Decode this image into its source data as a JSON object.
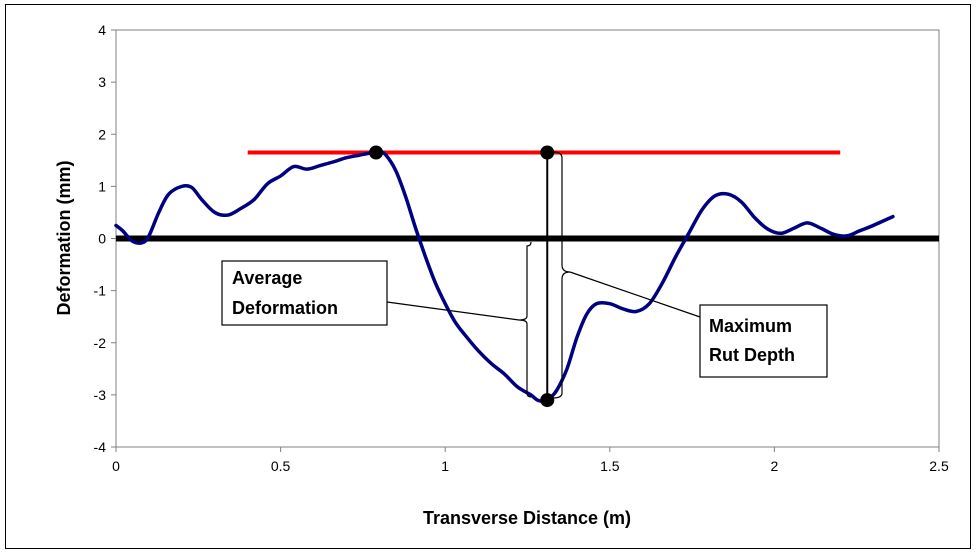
{
  "chart_data": {
    "type": "line",
    "xlabel": "Transverse Distance (m)",
    "ylabel": "Deformation (mm)",
    "xlim": [
      0,
      2.5
    ],
    "ylim": [
      -4,
      4
    ],
    "xticks": [
      0,
      0.5,
      1,
      1.5,
      2,
      2.5
    ],
    "xtick_labels": [
      "0",
      "0.5",
      "1",
      "1.5",
      "2",
      "2.5"
    ],
    "yticks": [
      -4,
      -3,
      -2,
      -1,
      0,
      1,
      2,
      3,
      4
    ],
    "ytick_labels": [
      "-4",
      "-3",
      "-2",
      "-1",
      "0",
      "1",
      "2",
      "3",
      "4"
    ],
    "grid": false,
    "series": [
      {
        "color": "#000080",
        "x": [
          0,
          0.02,
          0.05,
          0.08,
          0.1,
          0.13,
          0.16,
          0.2,
          0.23,
          0.26,
          0.3,
          0.34,
          0.38,
          0.42,
          0.46,
          0.5,
          0.54,
          0.58,
          0.62,
          0.66,
          0.7,
          0.74,
          0.78,
          0.8,
          0.82,
          0.85,
          0.88,
          0.91,
          0.94,
          0.97,
          1.0,
          1.03,
          1.06,
          1.1,
          1.14,
          1.18,
          1.22,
          1.26,
          1.28,
          1.3,
          1.32,
          1.34,
          1.37,
          1.4,
          1.43,
          1.46,
          1.5,
          1.54,
          1.58,
          1.62,
          1.66,
          1.7,
          1.74,
          1.78,
          1.82,
          1.86,
          1.9,
          1.94,
          1.98,
          2.02,
          2.06,
          2.1,
          2.14,
          2.18,
          2.22,
          2.26,
          2.3,
          2.36
        ],
        "y": [
          0.25,
          0.15,
          -0.05,
          -0.08,
          0.05,
          0.5,
          0.85,
          1.0,
          0.98,
          0.75,
          0.5,
          0.45,
          0.58,
          0.75,
          1.05,
          1.2,
          1.38,
          1.33,
          1.4,
          1.47,
          1.55,
          1.6,
          1.65,
          1.67,
          1.6,
          1.3,
          0.8,
          0.2,
          -0.35,
          -0.85,
          -1.25,
          -1.6,
          -1.85,
          -2.15,
          -2.4,
          -2.6,
          -2.85,
          -3.0,
          -3.1,
          -3.12,
          -3.05,
          -2.9,
          -2.5,
          -1.9,
          -1.45,
          -1.25,
          -1.25,
          -1.35,
          -1.4,
          -1.25,
          -0.85,
          -0.35,
          0.1,
          0.55,
          0.82,
          0.85,
          0.7,
          0.4,
          0.18,
          0.1,
          0.2,
          0.3,
          0.2,
          0.08,
          0.05,
          0.15,
          0.25,
          0.42
        ]
      }
    ],
    "reference_line": {
      "y": 1.65,
      "x": [
        0.4,
        2.2
      ],
      "color": "#ff0000"
    },
    "baseline": {
      "y": 0,
      "color": "#000000"
    },
    "markers": [
      {
        "x": 0.79,
        "y": 1.65
      },
      {
        "x": 1.31,
        "y": 1.65
      },
      {
        "x": 1.31,
        "y": -3.1
      }
    ],
    "annotations": [
      {
        "text_lines": [
          "Average",
          "Deformation"
        ]
      },
      {
        "text_lines": [
          "Maximum",
          "Rut Depth"
        ]
      }
    ]
  }
}
